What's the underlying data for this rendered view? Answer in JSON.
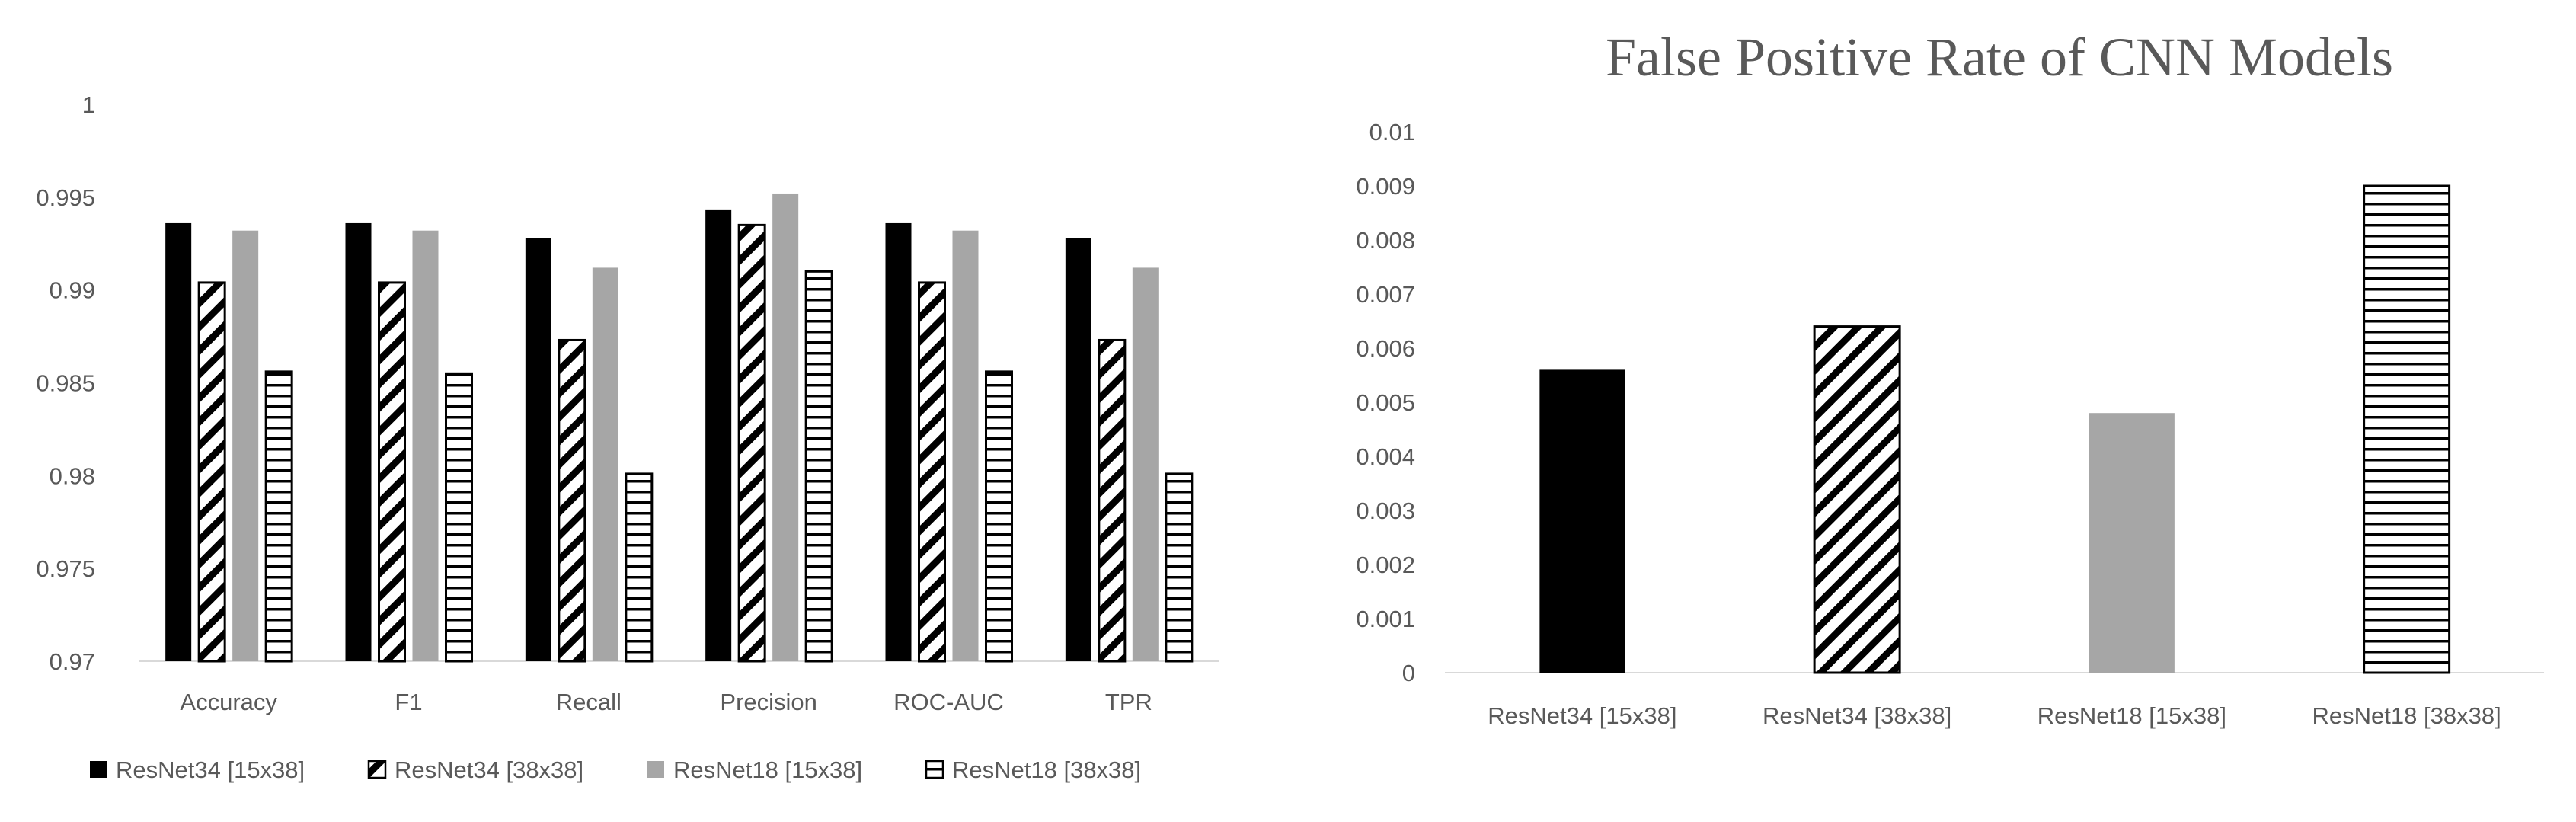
{
  "chart_data": [
    {
      "type": "bar",
      "title": "",
      "xlabel": "",
      "ylabel": "",
      "ylim": [
        0.97,
        1.0
      ],
      "y_ticks": [
        "0.97",
        "0.975",
        "0.98",
        "0.985",
        "0.99",
        "0.995",
        "1"
      ],
      "grid": false,
      "legend_position": "bottom",
      "categories": [
        "Accuracy",
        "F1",
        "Recall",
        "Precision",
        "ROC-AUC",
        "TPR"
      ],
      "series": [
        {
          "name": "ResNet34 [15x38]",
          "pattern": "solid-black",
          "color": "#000000",
          "values": [
            0.9936,
            0.9936,
            0.9928,
            0.9943,
            0.9936,
            0.9928
          ]
        },
        {
          "name": "ResNet34 [38x38]",
          "pattern": "diagonal-stripes",
          "color": "#000000",
          "values": [
            0.9904,
            0.9904,
            0.9873,
            0.9935,
            0.9904,
            0.9873
          ]
        },
        {
          "name": "ResNet18 [15x38]",
          "pattern": "solid-gray",
          "color": "#A6A6A6",
          "values": [
            0.9932,
            0.9932,
            0.9912,
            0.9952,
            0.9932,
            0.9912
          ]
        },
        {
          "name": "ResNet18 [38x38]",
          "pattern": "horizontal-stripes",
          "color": "#000000",
          "values": [
            0.9856,
            0.9855,
            0.9801,
            0.991,
            0.9856,
            0.9801
          ]
        }
      ]
    },
    {
      "type": "bar",
      "title": "False Positive Rate of CNN Models",
      "xlabel": "",
      "ylabel": "",
      "ylim": [
        0,
        0.01
      ],
      "y_ticks": [
        "0",
        "0.001",
        "0.002",
        "0.003",
        "0.004",
        "0.005",
        "0.006",
        "0.007",
        "0.008",
        "0.009",
        "0.01"
      ],
      "grid": false,
      "categories": [
        "ResNet34 [15x38]",
        "ResNet34 [38x38]",
        "ResNet18 [15x38]",
        "ResNet18 [38x38]"
      ],
      "values": [
        0.0056,
        0.0064,
        0.0048,
        0.009
      ],
      "patterns": [
        "solid-black",
        "diagonal-stripes",
        "solid-gray",
        "horizontal-stripes"
      ]
    }
  ]
}
